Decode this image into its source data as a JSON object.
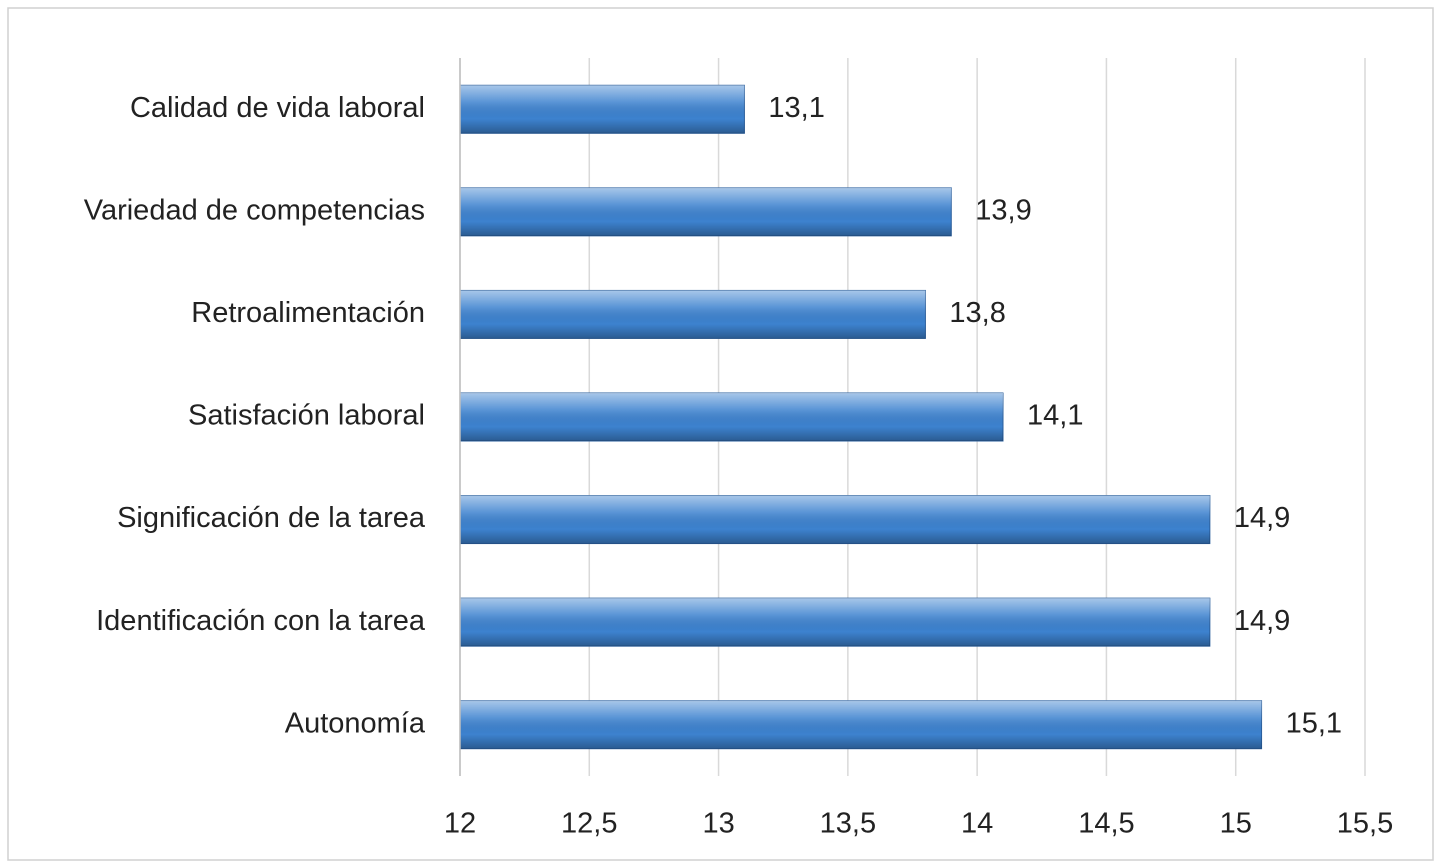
{
  "chart_data": {
    "type": "bar",
    "orientation": "horizontal",
    "categories": [
      "Calidad de vida laboral",
      "Variedad de competencias",
      "Retroalimentación",
      "Satisfación laboral",
      "Significación de la tarea",
      "Identificación con la tarea",
      "Autonomía"
    ],
    "values": [
      13.1,
      13.9,
      13.8,
      14.1,
      14.9,
      14.9,
      15.1
    ],
    "value_labels": [
      "13,1",
      "13,9",
      "13,8",
      "14,1",
      "14,9",
      "14,9",
      "15,1"
    ],
    "color": "#3d82cf",
    "xlim": [
      12,
      15.5
    ],
    "xticks": [
      12,
      {
        "value": 12.5,
        "label": "12,5"
      },
      13,
      {
        "value": 13.5,
        "label": "13,5"
      },
      14,
      {
        "value": 14.5,
        "label": "14,5"
      },
      15,
      {
        "value": 15.5,
        "label": "15,5"
      }
    ],
    "grid": true
  }
}
